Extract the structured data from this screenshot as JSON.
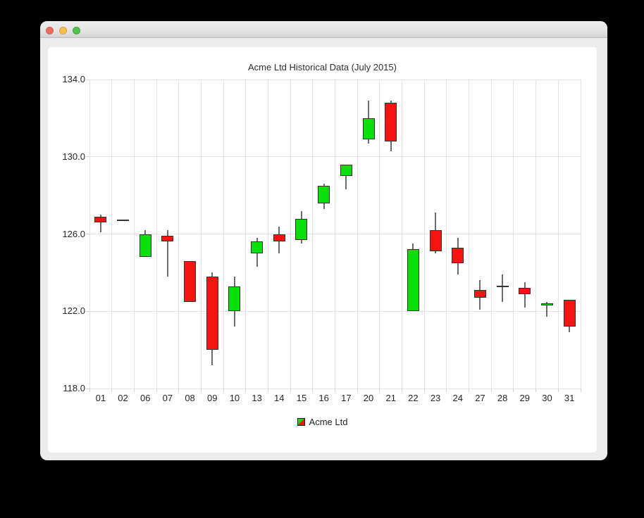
{
  "window": {
    "titlebar_buttons": [
      {
        "name": "close",
        "color": "#EC6A5E",
        "border": "#D55E52"
      },
      {
        "name": "minimize",
        "color": "#F4BF4F",
        "border": "#D6A243"
      },
      {
        "name": "zoom",
        "color": "#55C14E",
        "border": "#3FA73A"
      }
    ]
  },
  "chart_data": {
    "type": "candlestick",
    "title": "Acme Ltd Historical Data (July 2015)",
    "legend": {
      "label": "Acme Ltd",
      "position": "bottom",
      "marker": "green-red-diagonal-square"
    },
    "ylim": [
      118.0,
      134.0
    ],
    "yticks": [
      134.0,
      130.0,
      126.0,
      122.0,
      118.0
    ],
    "ytick_labels": [
      "134.0",
      "130.0",
      "126.0",
      "122.0",
      "118.0"
    ],
    "grid": true,
    "categories": [
      "01",
      "02",
      "06",
      "07",
      "08",
      "09",
      "10",
      "13",
      "14",
      "15",
      "16",
      "17",
      "20",
      "21",
      "22",
      "23",
      "24",
      "27",
      "28",
      "29",
      "30",
      "31"
    ],
    "candles": [
      {
        "date": "01",
        "open": 126.9,
        "high": 127.0,
        "low": 126.1,
        "close": 126.6
      },
      {
        "date": "02",
        "open": 126.7,
        "high": 126.7,
        "low": 126.7,
        "close": 126.7
      },
      {
        "date": "06",
        "open": 124.8,
        "high": 126.2,
        "low": 124.8,
        "close": 126.0
      },
      {
        "date": "07",
        "open": 125.9,
        "high": 126.2,
        "low": 123.8,
        "close": 125.6
      },
      {
        "date": "08",
        "open": 124.6,
        "high": 124.6,
        "low": 122.5,
        "close": 122.5
      },
      {
        "date": "09",
        "open": 123.8,
        "high": 124.0,
        "low": 119.2,
        "close": 120.0
      },
      {
        "date": "10",
        "open": 122.0,
        "high": 123.8,
        "low": 121.2,
        "close": 123.3
      },
      {
        "date": "13",
        "open": 125.0,
        "high": 125.8,
        "low": 124.3,
        "close": 125.6
      },
      {
        "date": "14",
        "open": 126.0,
        "high": 126.4,
        "low": 125.0,
        "close": 125.6
      },
      {
        "date": "15",
        "open": 125.7,
        "high": 127.2,
        "low": 125.5,
        "close": 126.8
      },
      {
        "date": "16",
        "open": 127.6,
        "high": 128.6,
        "low": 127.3,
        "close": 128.5
      },
      {
        "date": "17",
        "open": 129.0,
        "high": 129.6,
        "low": 128.3,
        "close": 129.6
      },
      {
        "date": "20",
        "open": 130.9,
        "high": 132.9,
        "low": 130.7,
        "close": 132.0
      },
      {
        "date": "21",
        "open": 132.8,
        "high": 132.9,
        "low": 130.3,
        "close": 130.8
      },
      {
        "date": "22",
        "open": 122.0,
        "high": 125.5,
        "low": 122.0,
        "close": 125.2
      },
      {
        "date": "23",
        "open": 126.2,
        "high": 127.1,
        "low": 125.0,
        "close": 125.1
      },
      {
        "date": "24",
        "open": 125.3,
        "high": 125.8,
        "low": 123.9,
        "close": 124.5
      },
      {
        "date": "27",
        "open": 123.1,
        "high": 123.6,
        "low": 122.1,
        "close": 122.7
      },
      {
        "date": "28",
        "open": 123.3,
        "high": 123.9,
        "low": 122.5,
        "close": 123.3
      },
      {
        "date": "29",
        "open": 123.2,
        "high": 123.5,
        "low": 122.2,
        "close": 122.9
      },
      {
        "date": "30",
        "open": 122.3,
        "high": 122.5,
        "low": 121.7,
        "close": 122.4
      },
      {
        "date": "31",
        "open": 122.6,
        "high": 122.6,
        "low": 120.9,
        "close": 121.2
      }
    ],
    "colors": {
      "increasing": "#0ADF0A",
      "decreasing": "#F51410",
      "outline": "#333333",
      "wick": "#6B6B6B",
      "doji_line": "#333333",
      "grid": "#E3E3E3",
      "tick": "#CFCFCF"
    }
  }
}
